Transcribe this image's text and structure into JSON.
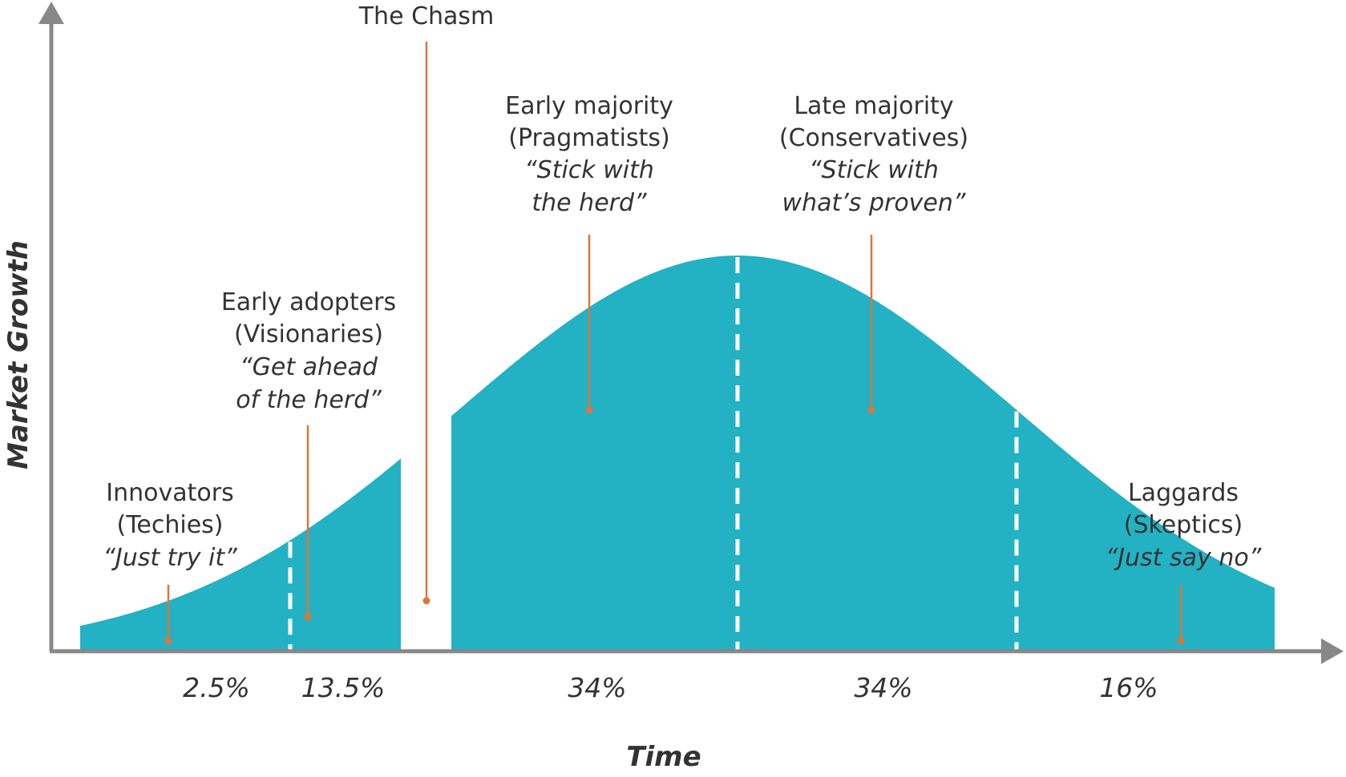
{
  "axes": {
    "x_label": "Time",
    "y_label": "Market Growth"
  },
  "chasm": {
    "label": "The Chasm"
  },
  "segments": [
    {
      "id": "innovators",
      "name": "Innovators",
      "alias": "(Techies)",
      "quote": [
        "“Just try it”"
      ],
      "share": "2.5%"
    },
    {
      "id": "early-adopters",
      "name": "Early adopters",
      "alias": "(Visionaries)",
      "quote": [
        "“Get ahead",
        "of the herd”"
      ],
      "share": "13.5%"
    },
    {
      "id": "early-majority",
      "name": "Early majority",
      "alias": "(Pragmatists)",
      "quote": [
        "“Stick with",
        "the herd”"
      ],
      "share": "34%"
    },
    {
      "id": "late-majority",
      "name": "Late majority",
      "alias": "(Conservatives)",
      "quote": [
        "“Stick with",
        "what’s proven”"
      ],
      "share": "34%"
    },
    {
      "id": "laggards",
      "name": "Laggards",
      "alias": "(Skeptics)",
      "quote": [
        "“Just say no”"
      ],
      "share": "16%"
    }
  ],
  "colors": {
    "curve_fill": "#23b1c4",
    "leader_line": "#d9773a",
    "axis": "#888888",
    "divider": "#ffffff",
    "text": "#333333"
  }
}
